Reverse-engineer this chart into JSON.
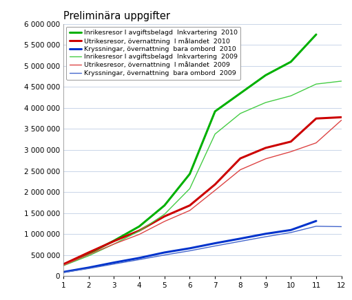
{
  "title": "Preliminära uppgifter",
  "series": [
    {
      "label": "Inrikesresor I avgiftsbelagd  Inkvartering  2010",
      "color": "#00b000",
      "linewidth": 2.2,
      "data": [
        270000,
        530000,
        840000,
        1180000,
        1680000,
        2430000,
        3920000,
        4350000,
        4780000,
        5100000,
        5750000,
        null
      ]
    },
    {
      "label": "Utrikesresor, övernattning  I målandet  2010",
      "color": "#cc0000",
      "linewidth": 2.2,
      "data": [
        280000,
        560000,
        830000,
        1080000,
        1420000,
        1680000,
        2180000,
        2800000,
        3050000,
        3200000,
        3750000,
        3780000
      ]
    },
    {
      "label": "Kryssningar, övernattning  bara ombord  2010",
      "color": "#0033cc",
      "linewidth": 2.2,
      "data": [
        95000,
        200000,
        320000,
        430000,
        560000,
        660000,
        780000,
        890000,
        1005000,
        1095000,
        1310000,
        null
      ]
    },
    {
      "label": "Inrikesresor I avgiftsbelagd  Inkvartering  2009",
      "color": "#44cc44",
      "linewidth": 1.0,
      "data": [
        245000,
        480000,
        760000,
        1070000,
        1470000,
        2080000,
        3380000,
        3870000,
        4130000,
        4290000,
        4570000,
        4640000
      ]
    },
    {
      "label": "Utrikesresor, övernattning  I målandet  2009",
      "color": "#dd4444",
      "linewidth": 1.0,
      "data": [
        255000,
        510000,
        760000,
        990000,
        1300000,
        1560000,
        2040000,
        2530000,
        2790000,
        2960000,
        3170000,
        3710000
      ]
    },
    {
      "label": "Kryssningar, övernattning  bara ombord  2009",
      "color": "#4466cc",
      "linewidth": 1.0,
      "data": [
        85000,
        178000,
        285000,
        390000,
        500000,
        600000,
        715000,
        825000,
        935000,
        1035000,
        1185000,
        1175000
      ]
    }
  ],
  "xlim": [
    1,
    12
  ],
  "ylim": [
    0,
    6000000
  ],
  "yticks": [
    0,
    500000,
    1000000,
    1500000,
    2000000,
    2500000,
    3000000,
    3500000,
    4000000,
    4500000,
    5000000,
    5500000,
    6000000
  ],
  "xticks": [
    1,
    2,
    3,
    4,
    5,
    6,
    7,
    8,
    9,
    10,
    11,
    12
  ],
  "background_color": "#ffffff",
  "plot_bg_color": "#ffffff",
  "grid_color": "#c8d4e8",
  "legend_fontsize": 6.8,
  "title_fontsize": 10.5
}
